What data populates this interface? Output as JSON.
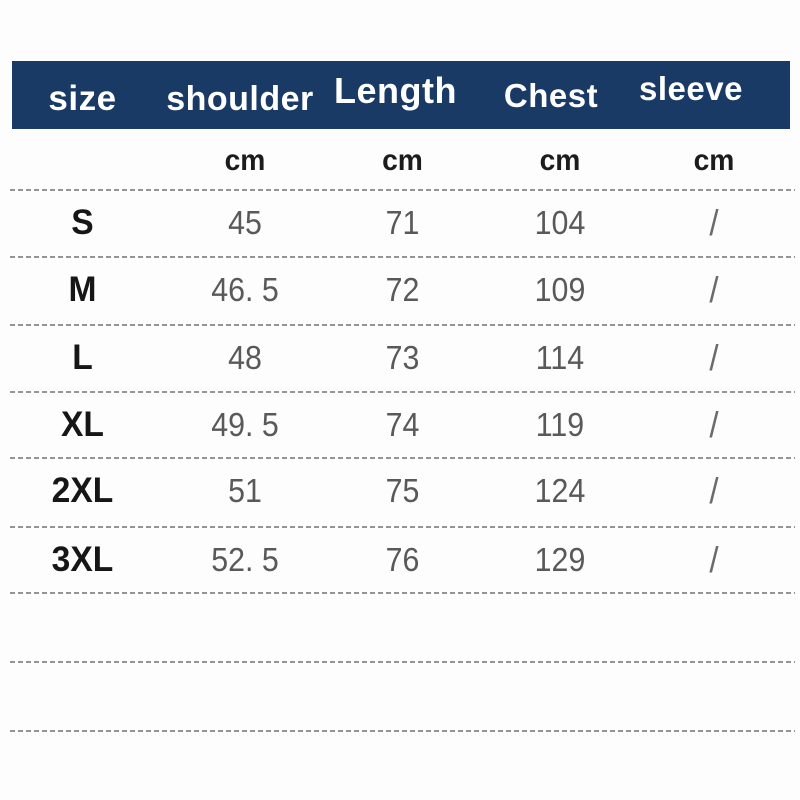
{
  "colors": {
    "header_bg": "#1a3a66",
    "header_text": "#ffffff",
    "size_text": "#161616",
    "value_text": "#59595b",
    "divider": "#949494"
  },
  "chart_data": {
    "type": "table",
    "title": "",
    "columns": [
      "size",
      "shoulder",
      "Length",
      "Chest",
      "sleeve"
    ],
    "units": [
      "",
      "cm",
      "cm",
      "cm",
      "cm"
    ],
    "rows": [
      [
        "S",
        "45",
        "71",
        "104",
        "/"
      ],
      [
        "M",
        "46. 5",
        "72",
        "109",
        "/"
      ],
      [
        "L",
        "48",
        "73",
        "114",
        "/"
      ],
      [
        "XL",
        "49. 5",
        "74",
        "119",
        "/"
      ],
      [
        "2XL",
        "51",
        "75",
        "124",
        "/"
      ],
      [
        "3XL",
        "52. 5",
        "76",
        "129",
        "/"
      ]
    ],
    "empty_trailing_rows": 2,
    "layout_hints": {
      "header_style": "solid navy bar with white labels",
      "row_separator": "gray dashed lines",
      "sleeve_values": "slash means not applicable"
    }
  }
}
